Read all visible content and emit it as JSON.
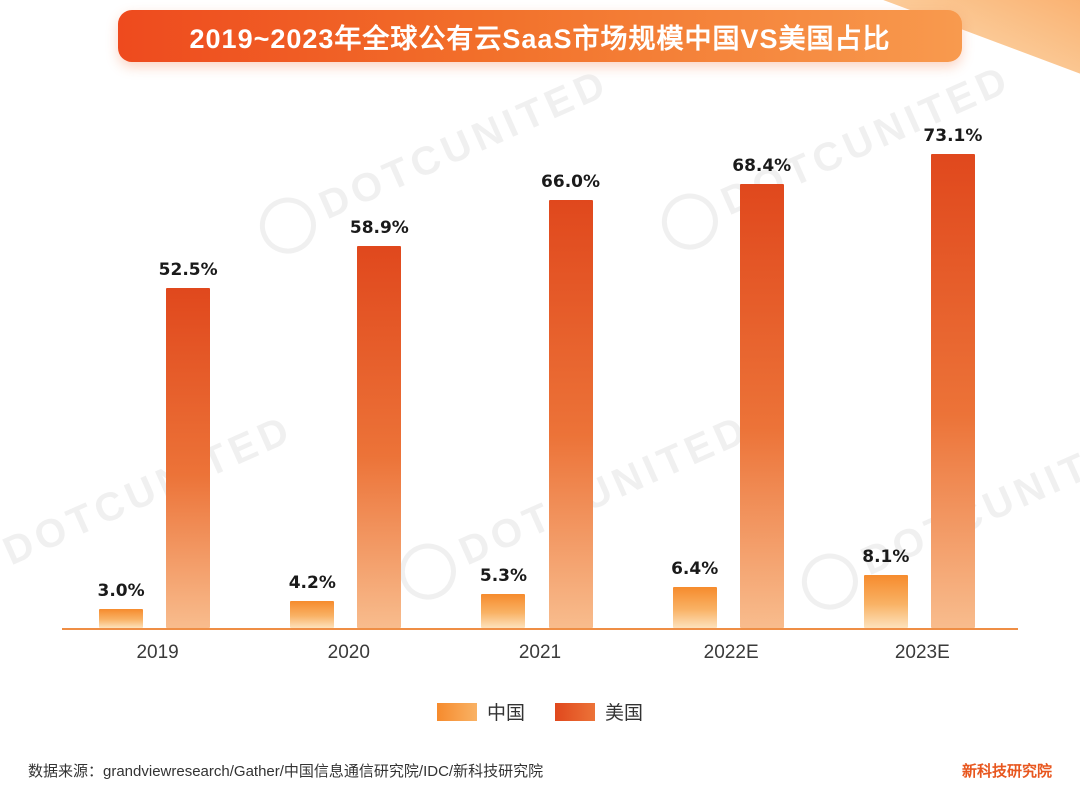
{
  "title": "2019~2023年全球公有云SaaS市场规模中国VS美国占比",
  "chart_data": {
    "type": "bar",
    "categories": [
      "2019",
      "2020",
      "2021",
      "2022E",
      "2023E"
    ],
    "series": [
      {
        "name": "中国",
        "values": [
          3.0,
          4.2,
          5.3,
          6.4,
          8.1
        ],
        "color_top": "#f68b2d",
        "color_mid": "#f9b265",
        "color_bottom": "#fde2bc"
      },
      {
        "name": "美国",
        "values": [
          52.5,
          58.9,
          66.0,
          68.4,
          73.1
        ],
        "color_top": "#e0481d",
        "color_mid": "#ec7338",
        "color_bottom": "#f8bc8d"
      }
    ],
    "value_suffix": "%",
    "ylim": [
      0,
      80
    ],
    "grid": false,
    "legend_position": "bottom",
    "xlabel": "",
    "ylabel": ""
  },
  "footer": {
    "source": "数据来源：grandviewresearch/Gather/中国信息通信研究院/IDC/新科技研究院",
    "brand": "新科技研究院"
  },
  "watermark": {
    "text": "DOTCUNITED"
  },
  "colors": {
    "banner_gradient_left": "#ee4a1e",
    "banner_gradient_right": "#f89a4e",
    "axis_line": "#ef8e45",
    "label_text": "#1a1a1a"
  }
}
